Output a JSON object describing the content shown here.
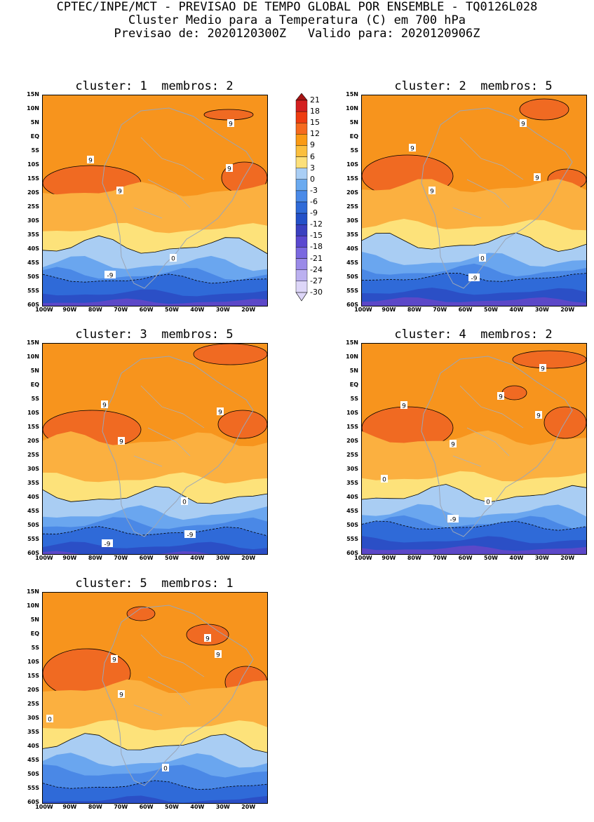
{
  "header": {
    "line1": "CPTEC/INPE/MCT - PREVISAO DE TEMPO GLOBAL POR ENSEMBLE - TQ0126L028",
    "line2": "Cluster Medio para a Temperatura (C) em 700 hPa",
    "line3": "Previsao de: 2020120300Z   Valido para: 2020120906Z"
  },
  "panels": [
    {
      "title": "cluster: 1  membros: 2"
    },
    {
      "title": "cluster: 2  membros: 5"
    },
    {
      "title": "cluster: 3  membros: 5"
    },
    {
      "title": "cluster: 4  membros: 2"
    },
    {
      "title": "cluster: 5  membros: 1"
    }
  ],
  "map_axes": {
    "lat_labels": [
      "15N",
      "10N",
      "5N",
      "EQ",
      "5S",
      "10S",
      "15S",
      "20S",
      "25S",
      "30S",
      "35S",
      "40S",
      "45S",
      "50S",
      "55S",
      "60S"
    ],
    "lon_labels": [
      "100W",
      "90W",
      "80W",
      "70W",
      "60W",
      "50W",
      "40W",
      "30W",
      "20W"
    ]
  },
  "contour_labels": [
    "9",
    "0",
    "-9"
  ],
  "colorbar": {
    "levels": [
      "21",
      "18",
      "15",
      "12",
      "9",
      "6",
      "3",
      "0",
      "-3",
      "-6",
      "-9",
      "-12",
      "-15",
      "-18",
      "-21",
      "-24",
      "-27",
      "-30"
    ],
    "colors": [
      "#a61414",
      "#d42020",
      "#ee3c10",
      "#f56a1e",
      "#fa9a14",
      "#fbbf3e",
      "#fde07a",
      "#a9cef5",
      "#6aaaf0",
      "#4a8ae8",
      "#2f6ad8",
      "#2350c8",
      "#3a40c0",
      "#5a48d0",
      "#7a68e0",
      "#9a8ae8",
      "#bbb0f0",
      "#ddd6f8"
    ]
  },
  "chart_data": {
    "type": "heatmap",
    "variable": "Temperatura (C) em 700 hPa",
    "lat_range": [
      "60S",
      "15N"
    ],
    "lon_range": [
      "100W",
      "12W"
    ],
    "panels": [
      {
        "cluster": 1,
        "membros": 2,
        "zero_isotherm_lat_S": 37,
        "minus9_isotherm_lat_S": 51
      },
      {
        "cluster": 2,
        "membros": 5,
        "zero_isotherm_lat_S": 37,
        "minus9_isotherm_lat_S": 51
      },
      {
        "cluster": 3,
        "membros": 5,
        "zero_isotherm_lat_S": 37,
        "minus9_isotherm_lat_S": 52
      },
      {
        "cluster": 4,
        "membros": 2,
        "zero_isotherm_lat_S": 36,
        "minus9_isotherm_lat_S": 52
      },
      {
        "cluster": 5,
        "membros": 1,
        "zero_isotherm_lat_S": 36,
        "minus9_isotherm_lat_S": 54
      }
    ]
  }
}
